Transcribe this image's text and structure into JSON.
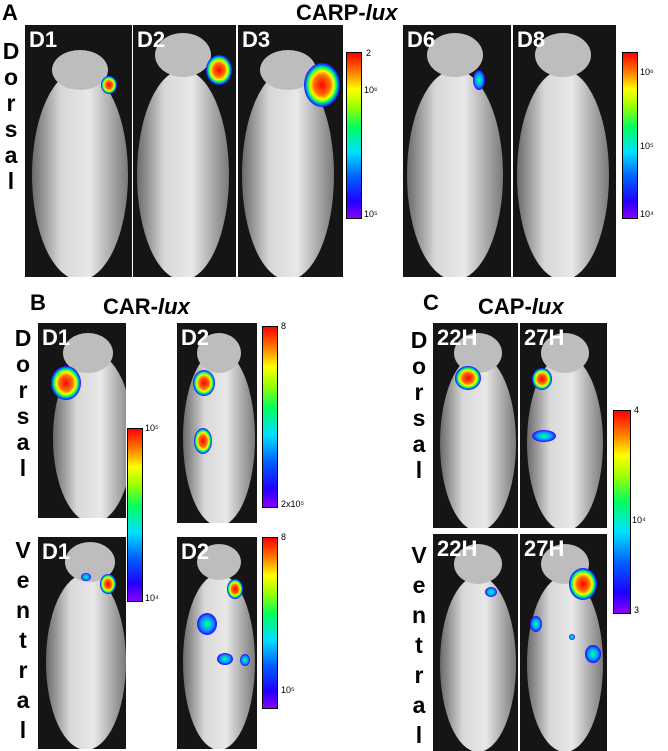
{
  "panels": {
    "A": {
      "letter": "A",
      "title_main": "CARP-",
      "title_ital": "lux",
      "side_label": [
        "D",
        "o",
        "r",
        "s",
        "a",
        "l"
      ],
      "days": [
        "D1",
        "D2",
        "D3",
        "D6",
        "D8"
      ],
      "scale1": {
        "top": "2",
        "mid": "10⁶",
        "bot": "10⁵"
      },
      "scale2": {
        "top": "10⁶",
        "mid": "10⁵",
        "bot": "10⁴"
      }
    },
    "B": {
      "letter": "B",
      "title_main": "CAR-",
      "title_ital": "lux",
      "side_top": [
        "D",
        "o",
        "r",
        "s",
        "a",
        "l"
      ],
      "side_bottom": [
        "V",
        "e",
        "n",
        "t",
        "r",
        "a",
        "l"
      ],
      "days_top": [
        "D1",
        "D2"
      ],
      "days_bottom": [
        "D1",
        "D2"
      ],
      "scale1": {
        "top": "10⁵",
        "bot": "10⁴"
      },
      "scale2": {
        "top": "8",
        "bot": "2x10⁵"
      },
      "scale3": {
        "top": "8",
        "bot": "10⁵"
      }
    },
    "C": {
      "letter": "C",
      "title_main": "CAP-",
      "title_ital": "lux",
      "side_top": [
        "D",
        "o",
        "r",
        "s",
        "a",
        "l"
      ],
      "side_bottom": [
        "V",
        "e",
        "n",
        "t",
        "r",
        "a",
        "l"
      ],
      "days_top": [
        "22H",
        "27H"
      ],
      "days_bottom": [
        "22H",
        "27H"
      ],
      "scale": {
        "top": "4",
        "mid": "10⁴",
        "bot": "3"
      }
    }
  }
}
